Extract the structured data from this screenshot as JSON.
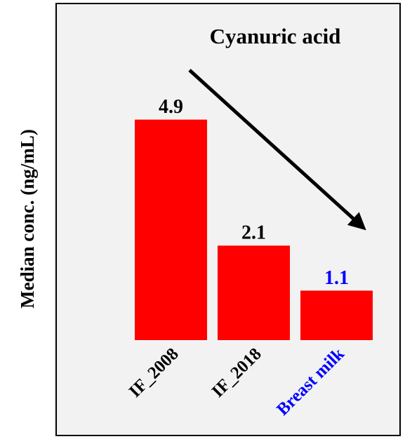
{
  "chart_data": {
    "type": "bar",
    "title": "Cyanuric acid",
    "y_label": "Median conc. (ng/mL)",
    "categories": [
      "IF_2008",
      "IF_2018",
      "Breast milk"
    ],
    "values": [
      4.9,
      2.1,
      1.1
    ],
    "color": "#ff0000",
    "label_colors": [
      "#000000",
      "#000000",
      "#0000ff"
    ],
    "ylim": [
      0,
      6
    ]
  }
}
